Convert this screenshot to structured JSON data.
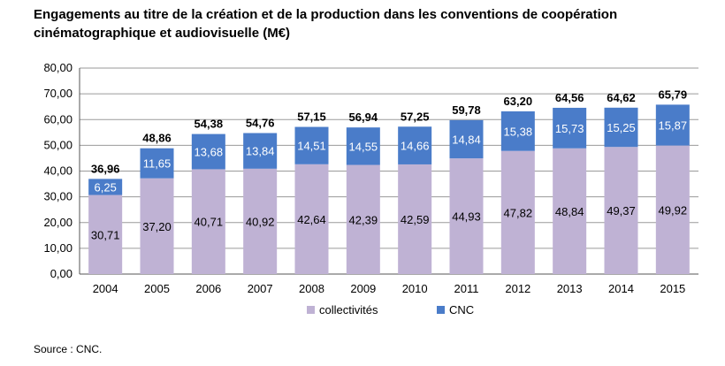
{
  "title_line1": "Engagements au titre de la création et de la production dans les conventions de coopération",
  "title_line2": "cinématographique et audiovisuelle (M€)",
  "source": "Source : CNC.",
  "chart_data": {
    "type": "bar",
    "stacked": true,
    "categories": [
      "2004",
      "2005",
      "2006",
      "2007",
      "2008",
      "2009",
      "2010",
      "2011",
      "2012",
      "2013",
      "2014",
      "2015"
    ],
    "series": [
      {
        "name": "collectivités",
        "color": "#BFB2D4",
        "values": [
          30.71,
          37.2,
          40.71,
          40.92,
          42.64,
          42.39,
          42.59,
          44.93,
          47.82,
          48.84,
          49.37,
          49.92
        ],
        "labels": [
          "30,71",
          "37,20",
          "40,71",
          "40,92",
          "42,64",
          "42,39",
          "42,59",
          "44,93",
          "47,82",
          "48,84",
          "49,37",
          "49,92"
        ]
      },
      {
        "name": "CNC",
        "color": "#4A7CC9",
        "values": [
          6.25,
          11.65,
          13.68,
          13.84,
          14.51,
          14.55,
          14.66,
          14.84,
          15.38,
          15.73,
          15.25,
          15.87
        ],
        "labels": [
          "6,25",
          "11,65",
          "13,68",
          "13,84",
          "14,51",
          "14,55",
          "14,66",
          "14,84",
          "15,38",
          "15,73",
          "15,25",
          "15,87"
        ]
      }
    ],
    "totals": [
      36.96,
      48.86,
      54.38,
      54.76,
      57.15,
      56.94,
      57.25,
      59.78,
      63.2,
      64.56,
      64.62,
      65.79
    ],
    "total_labels": [
      "36,96",
      "48,86",
      "54,38",
      "54,76",
      "57,15",
      "56,94",
      "57,25",
      "59,78",
      "63,20",
      "64,56",
      "64,62",
      "65,79"
    ],
    "ylim": [
      0,
      80
    ],
    "yticks": [
      "0,00",
      "10,00",
      "20,00",
      "30,00",
      "40,00",
      "50,00",
      "60,00",
      "70,00",
      "80,00"
    ],
    "grid": true,
    "legend_position": "bottom"
  }
}
